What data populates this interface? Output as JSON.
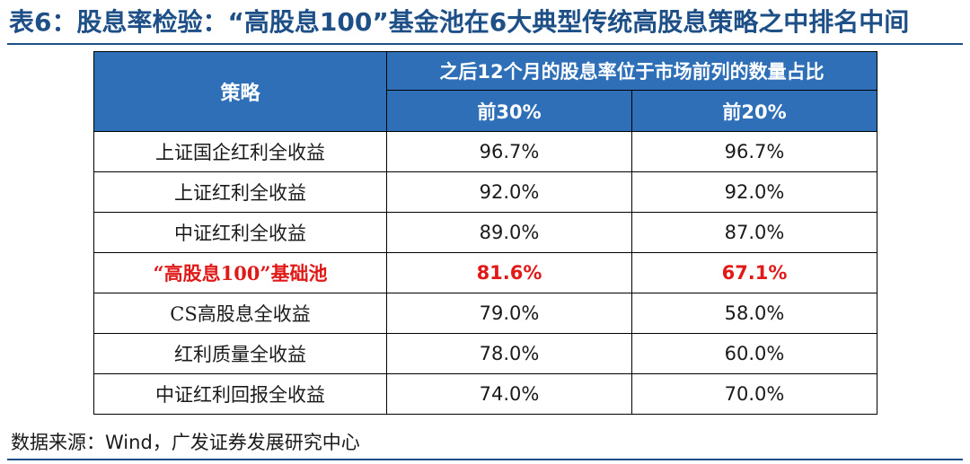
{
  "title": "表6：股息率检验：“高股息100”基金池在6大典型传统高股息策略之中排名中间",
  "table": {
    "strategy_header": "策略",
    "group_header": "之后12个月的股息率位于市场前列的数量占比",
    "col_headers": [
      "前30%",
      "前20%"
    ],
    "rows": [
      {
        "name": "上证国企红利全收益",
        "top30": "96.7%",
        "top20": "96.7%"
      },
      {
        "name": "上证红利全收益",
        "top30": "92.0%",
        "top20": "92.0%"
      },
      {
        "name": "中证红利全收益",
        "top30": "89.0%",
        "top20": "87.0%"
      },
      {
        "name": "“高股息100”基础池",
        "top30": "81.6%",
        "top20": "67.1%",
        "highlight": true
      },
      {
        "name": "CS高股息全收益",
        "top30": "79.0%",
        "top20": "58.0%"
      },
      {
        "name": "红利质量全收益",
        "top30": "78.0%",
        "top20": "60.0%"
      },
      {
        "name": "中证红利回报全收益",
        "top30": "74.0%",
        "top20": "70.0%"
      }
    ]
  },
  "source": "数据来源：Wind，广发证券发展研究中心",
  "colors": {
    "header_bg": "#2e6fb7",
    "title": "#1e4f86",
    "highlight": "#e01919"
  }
}
